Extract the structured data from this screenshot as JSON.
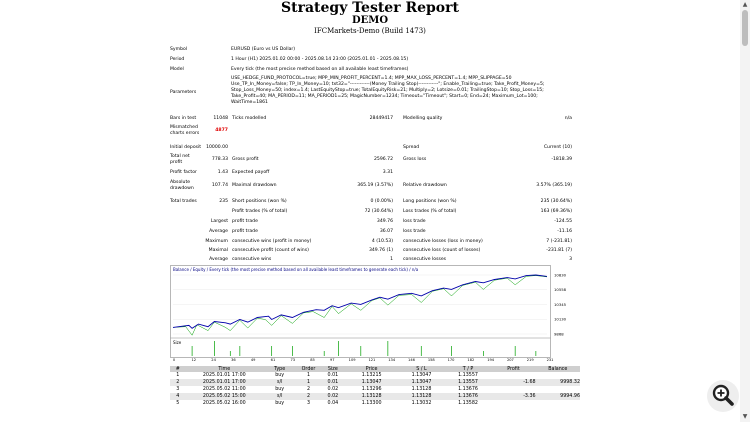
{
  "header": {
    "title": "Strategy Tester Report",
    "subtitle": "DEMO",
    "server": "IFCMarkets-Demo (Build 1473)"
  },
  "settings": {
    "symbol_label": "Symbol",
    "symbol_value": "EURUSD (Euro vs US Dollar)",
    "period_label": "Period",
    "period_value": "1 Hour (H1) 2025.01.02 00:00 - 2025.08.14 23:00 (2025.01.01 - 2025.08.15)",
    "model_label": "Model",
    "model_value": "Every tick (the most precise method based on all available least timeframes)",
    "params_label": "Parameters",
    "params_lines": [
      "USE_HEDGE_FUND_PROTOCOL=true; MPP_MIN_PROFIT_PERCENT=1.4; MPP_MAX_LOSS_PERCENT=1.4; MPP_SLIPPAGE=50",
      "Use_TP_In_Money=false; TP_In_Money=10; txt32=\"------------(Money Trailing Stop)------------\"; Enable_Trailing=true; Take_Profit_Money=5;",
      "Stop_Loss_Money=50; index=1.4; LastEquityStop=true; TotalEquityRisk=21; Multiply=2; Lotsize=0.01; TrailingStop=10; Stop_Loss=15;",
      "Take_Profit=40; MA_PERIOD=11; MA_PERIOD1=25; MagicNumber=1234; Timeout=\"Timeout\"; Start=0; End=24; Maximum_Lot=100;",
      "WaitTime=1861"
    ]
  },
  "quality": {
    "bars_label": "Bars in test",
    "bars_value": "11048",
    "ticks_label": "Ticks modelled",
    "ticks_value": "28449417",
    "mq_label": "Modelling quality",
    "mq_value": "n/a",
    "mismatched_label_1": "Mismatched",
    "mismatched_label_2": "charts errors",
    "mismatched_value": "4877"
  },
  "stats": {
    "initial_deposit_label": "Initial deposit",
    "initial_deposit_value": "10000.00",
    "spread_label": "Spread",
    "spread_value": "Current (10)",
    "net_profit_label_1": "Total net",
    "net_profit_label_2": "profit",
    "net_profit_value": "778.33",
    "gross_profit_label": "Gross profit",
    "gross_profit_value": "2596.72",
    "gross_loss_label": "Gross loss",
    "gross_loss_value": "-1818.39",
    "profit_factor_label": "Profit factor",
    "profit_factor_value": "1.43",
    "expected_payoff_label": "Expected payoff",
    "expected_payoff_value": "3.31",
    "abs_dd_label_1": "Absolute",
    "abs_dd_label_2": "drawdown",
    "abs_dd_value": "107.74",
    "max_dd_label": "Maximal drawdown",
    "max_dd_value": "365.19 (3.57%)",
    "rel_dd_label": "Relative drawdown",
    "rel_dd_value": "3.57% (365.19)",
    "total_trades_label": "Total trades",
    "total_trades_value": "235",
    "short_label": "Short positions (won %)",
    "short_value": "0 (0.00%)",
    "long_label": "Long positions (won %)",
    "long_value": "235 (30.64%)",
    "profit_trades_label": "Profit trades (% of total)",
    "profit_trades_value": "72 (30.64%)",
    "loss_trades_label": "Loss trades (% of total)",
    "loss_trades_value": "163 (69.36%)",
    "largest_label": "Largest",
    "largest_profit_label": "profit trade",
    "largest_profit_value": "349.76",
    "largest_loss_label": "loss trade",
    "largest_loss_value": "-124.55",
    "average_label": "Average",
    "average_profit_label": "profit trade",
    "average_profit_value": "36.07",
    "average_loss_label": "loss trade",
    "average_loss_value": "-11.16",
    "maximum_label": "Maximum",
    "max_cons_wins_label": "consecutive wins (profit in money)",
    "max_cons_wins_value": "4 (10.53)",
    "max_cons_losses_label": "consecutive losses (loss in money)",
    "max_cons_losses_value": "7 (-231.81)",
    "maximal_label": "Maximal",
    "maximal_profit_label": "consecutive profit (count of wins)",
    "maximal_profit_value": "349.76 (1)",
    "maximal_loss_label": "consecutive loss (count of losses)",
    "maximal_loss_value": "-231.81 (7)",
    "avg_cons_label": "Average",
    "avg_cons_wins_label": "consecutive wins",
    "avg_cons_wins_value": "1",
    "avg_cons_losses_label": "consecutive losses",
    "avg_cons_losses_value": "3"
  },
  "chart_data": {
    "type": "line",
    "legend": "Balance / Equity / Every tick (the most precise method based on all available least timeframes to generate each tick) / n/a",
    "size_label": "Size",
    "x_ticks": [
      "0",
      "12",
      "24",
      "36",
      "49",
      "61",
      "73",
      "85",
      "97",
      "109",
      "121",
      "134",
      "146",
      "158",
      "170",
      "182",
      "194",
      "207",
      "219",
      "231"
    ],
    "y_ticks": [
      "10830",
      "10558",
      "10345",
      "10130",
      "9868"
    ],
    "ylim": [
      9868,
      10830
    ],
    "xlim": [
      0,
      235
    ],
    "balance": [
      [
        0,
        10000
      ],
      [
        10,
        10030
      ],
      [
        12,
        9985
      ],
      [
        16,
        10050
      ],
      [
        22,
        10010
      ],
      [
        26,
        10090
      ],
      [
        33,
        10070
      ],
      [
        36,
        10050
      ],
      [
        42,
        10120
      ],
      [
        47,
        10080
      ],
      [
        53,
        10150
      ],
      [
        60,
        10170
      ],
      [
        62,
        10120
      ],
      [
        68,
        10190
      ],
      [
        75,
        10150
      ],
      [
        82,
        10230
      ],
      [
        90,
        10270
      ],
      [
        95,
        10260
      ],
      [
        100,
        10330
      ],
      [
        104,
        10300
      ],
      [
        112,
        10370
      ],
      [
        118,
        10350
      ],
      [
        125,
        10420
      ],
      [
        130,
        10460
      ],
      [
        135,
        10430
      ],
      [
        142,
        10500
      ],
      [
        150,
        10520
      ],
      [
        156,
        10480
      ],
      [
        163,
        10560
      ],
      [
        170,
        10600
      ],
      [
        175,
        10580
      ],
      [
        182,
        10650
      ],
      [
        190,
        10700
      ],
      [
        195,
        10680
      ],
      [
        202,
        10730
      ],
      [
        210,
        10760
      ],
      [
        215,
        10740
      ],
      [
        222,
        10790
      ],
      [
        228,
        10800
      ],
      [
        235,
        10778
      ]
    ],
    "equity": [
      [
        0,
        10000
      ],
      [
        8,
        10010
      ],
      [
        12,
        9880
      ],
      [
        15,
        10040
      ],
      [
        22,
        9950
      ],
      [
        26,
        10080
      ],
      [
        33,
        10000
      ],
      [
        36,
        9950
      ],
      [
        42,
        10110
      ],
      [
        47,
        9990
      ],
      [
        53,
        10140
      ],
      [
        58,
        10120
      ],
      [
        62,
        10030
      ],
      [
        68,
        10180
      ],
      [
        75,
        10060
      ],
      [
        82,
        10220
      ],
      [
        88,
        10240
      ],
      [
        95,
        10150
      ],
      [
        100,
        10320
      ],
      [
        104,
        10210
      ],
      [
        112,
        10360
      ],
      [
        118,
        10260
      ],
      [
        125,
        10410
      ],
      [
        130,
        10450
      ],
      [
        135,
        10340
      ],
      [
        142,
        10490
      ],
      [
        150,
        10500
      ],
      [
        156,
        10380
      ],
      [
        163,
        10550
      ],
      [
        170,
        10590
      ],
      [
        175,
        10480
      ],
      [
        182,
        10640
      ],
      [
        190,
        10690
      ],
      [
        195,
        10580
      ],
      [
        202,
        10720
      ],
      [
        210,
        10750
      ],
      [
        215,
        10650
      ],
      [
        222,
        10780
      ],
      [
        228,
        10790
      ],
      [
        235,
        10770
      ]
    ],
    "lot_sizes": [
      [
        12,
        2
      ],
      [
        26,
        3
      ],
      [
        36,
        1
      ],
      [
        42,
        2
      ],
      [
        62,
        2
      ],
      [
        75,
        2
      ],
      [
        95,
        1
      ],
      [
        104,
        3
      ],
      [
        118,
        2
      ],
      [
        135,
        3
      ],
      [
        156,
        2
      ],
      [
        175,
        2
      ],
      [
        195,
        1
      ],
      [
        215,
        2
      ],
      [
        228,
        1
      ]
    ]
  },
  "deals": {
    "headers": [
      "#",
      "Time",
      "Type",
      "Order",
      "Size",
      "Price",
      "S / L",
      "T / P",
      "Profit",
      "Balance"
    ],
    "rows": [
      [
        "1",
        "2025.01.01 17:00",
        "buy",
        "1",
        "0.01",
        "1.13215",
        "1.13047",
        "1.13557",
        "",
        ""
      ],
      [
        "2",
        "2025.01.01 17:00",
        "s/l",
        "1",
        "0.01",
        "1.13047",
        "1.13047",
        "1.13557",
        "-1.68",
        "9998.32"
      ],
      [
        "3",
        "2025.05.02 11:00",
        "buy",
        "2",
        "0.02",
        "1.13296",
        "1.13128",
        "1.13676",
        "",
        ""
      ],
      [
        "4",
        "2025.05.02 15:00",
        "s/l",
        "2",
        "0.02",
        "1.13128",
        "1.13128",
        "1.13676",
        "-3.36",
        "9994.96"
      ],
      [
        "5",
        "2025.05.02 16:00",
        "buy",
        "3",
        "0.04",
        "1.13300",
        "1.13032",
        "1.13582",
        "",
        ""
      ]
    ]
  },
  "ui": {
    "scroll_up": "▲",
    "scroll_down": "▼"
  }
}
